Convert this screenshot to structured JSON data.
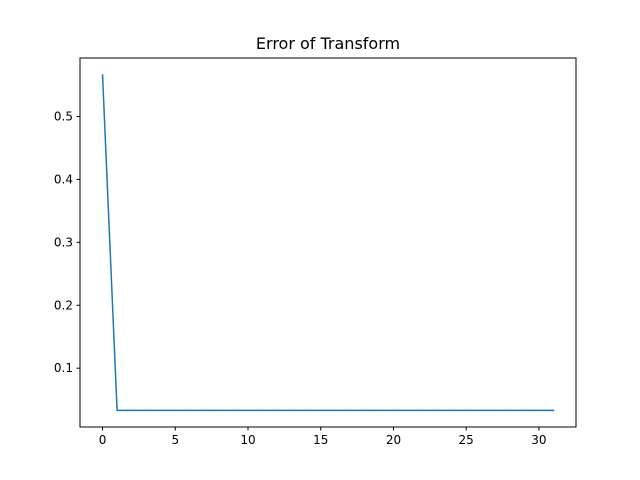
{
  "chart_data": {
    "type": "line",
    "title": "Error of Transform",
    "xlabel": "",
    "ylabel": "",
    "xlim": [
      -1.55,
      32.55
    ],
    "ylim": [
      0.0065,
      0.593
    ],
    "x_ticks": [
      0,
      5,
      10,
      15,
      20,
      25,
      30
    ],
    "y_ticks": [
      0.1,
      0.2,
      0.3,
      0.4,
      0.5
    ],
    "grid": false,
    "legend": "none",
    "series": [
      {
        "color": "#1f77b4",
        "x": [
          0,
          1,
          2,
          3,
          4,
          5,
          6,
          7,
          8,
          9,
          10,
          11,
          12,
          13,
          14,
          15,
          16,
          17,
          18,
          19,
          20,
          21,
          22,
          23,
          24,
          25,
          26,
          27,
          28,
          29,
          30,
          31
        ],
        "y": [
          0.566,
          0.033,
          0.033,
          0.033,
          0.033,
          0.033,
          0.033,
          0.033,
          0.033,
          0.033,
          0.033,
          0.033,
          0.033,
          0.033,
          0.033,
          0.033,
          0.033,
          0.033,
          0.033,
          0.033,
          0.033,
          0.033,
          0.033,
          0.033,
          0.033,
          0.033,
          0.033,
          0.033,
          0.033,
          0.033,
          0.033,
          0.033
        ]
      }
    ]
  }
}
